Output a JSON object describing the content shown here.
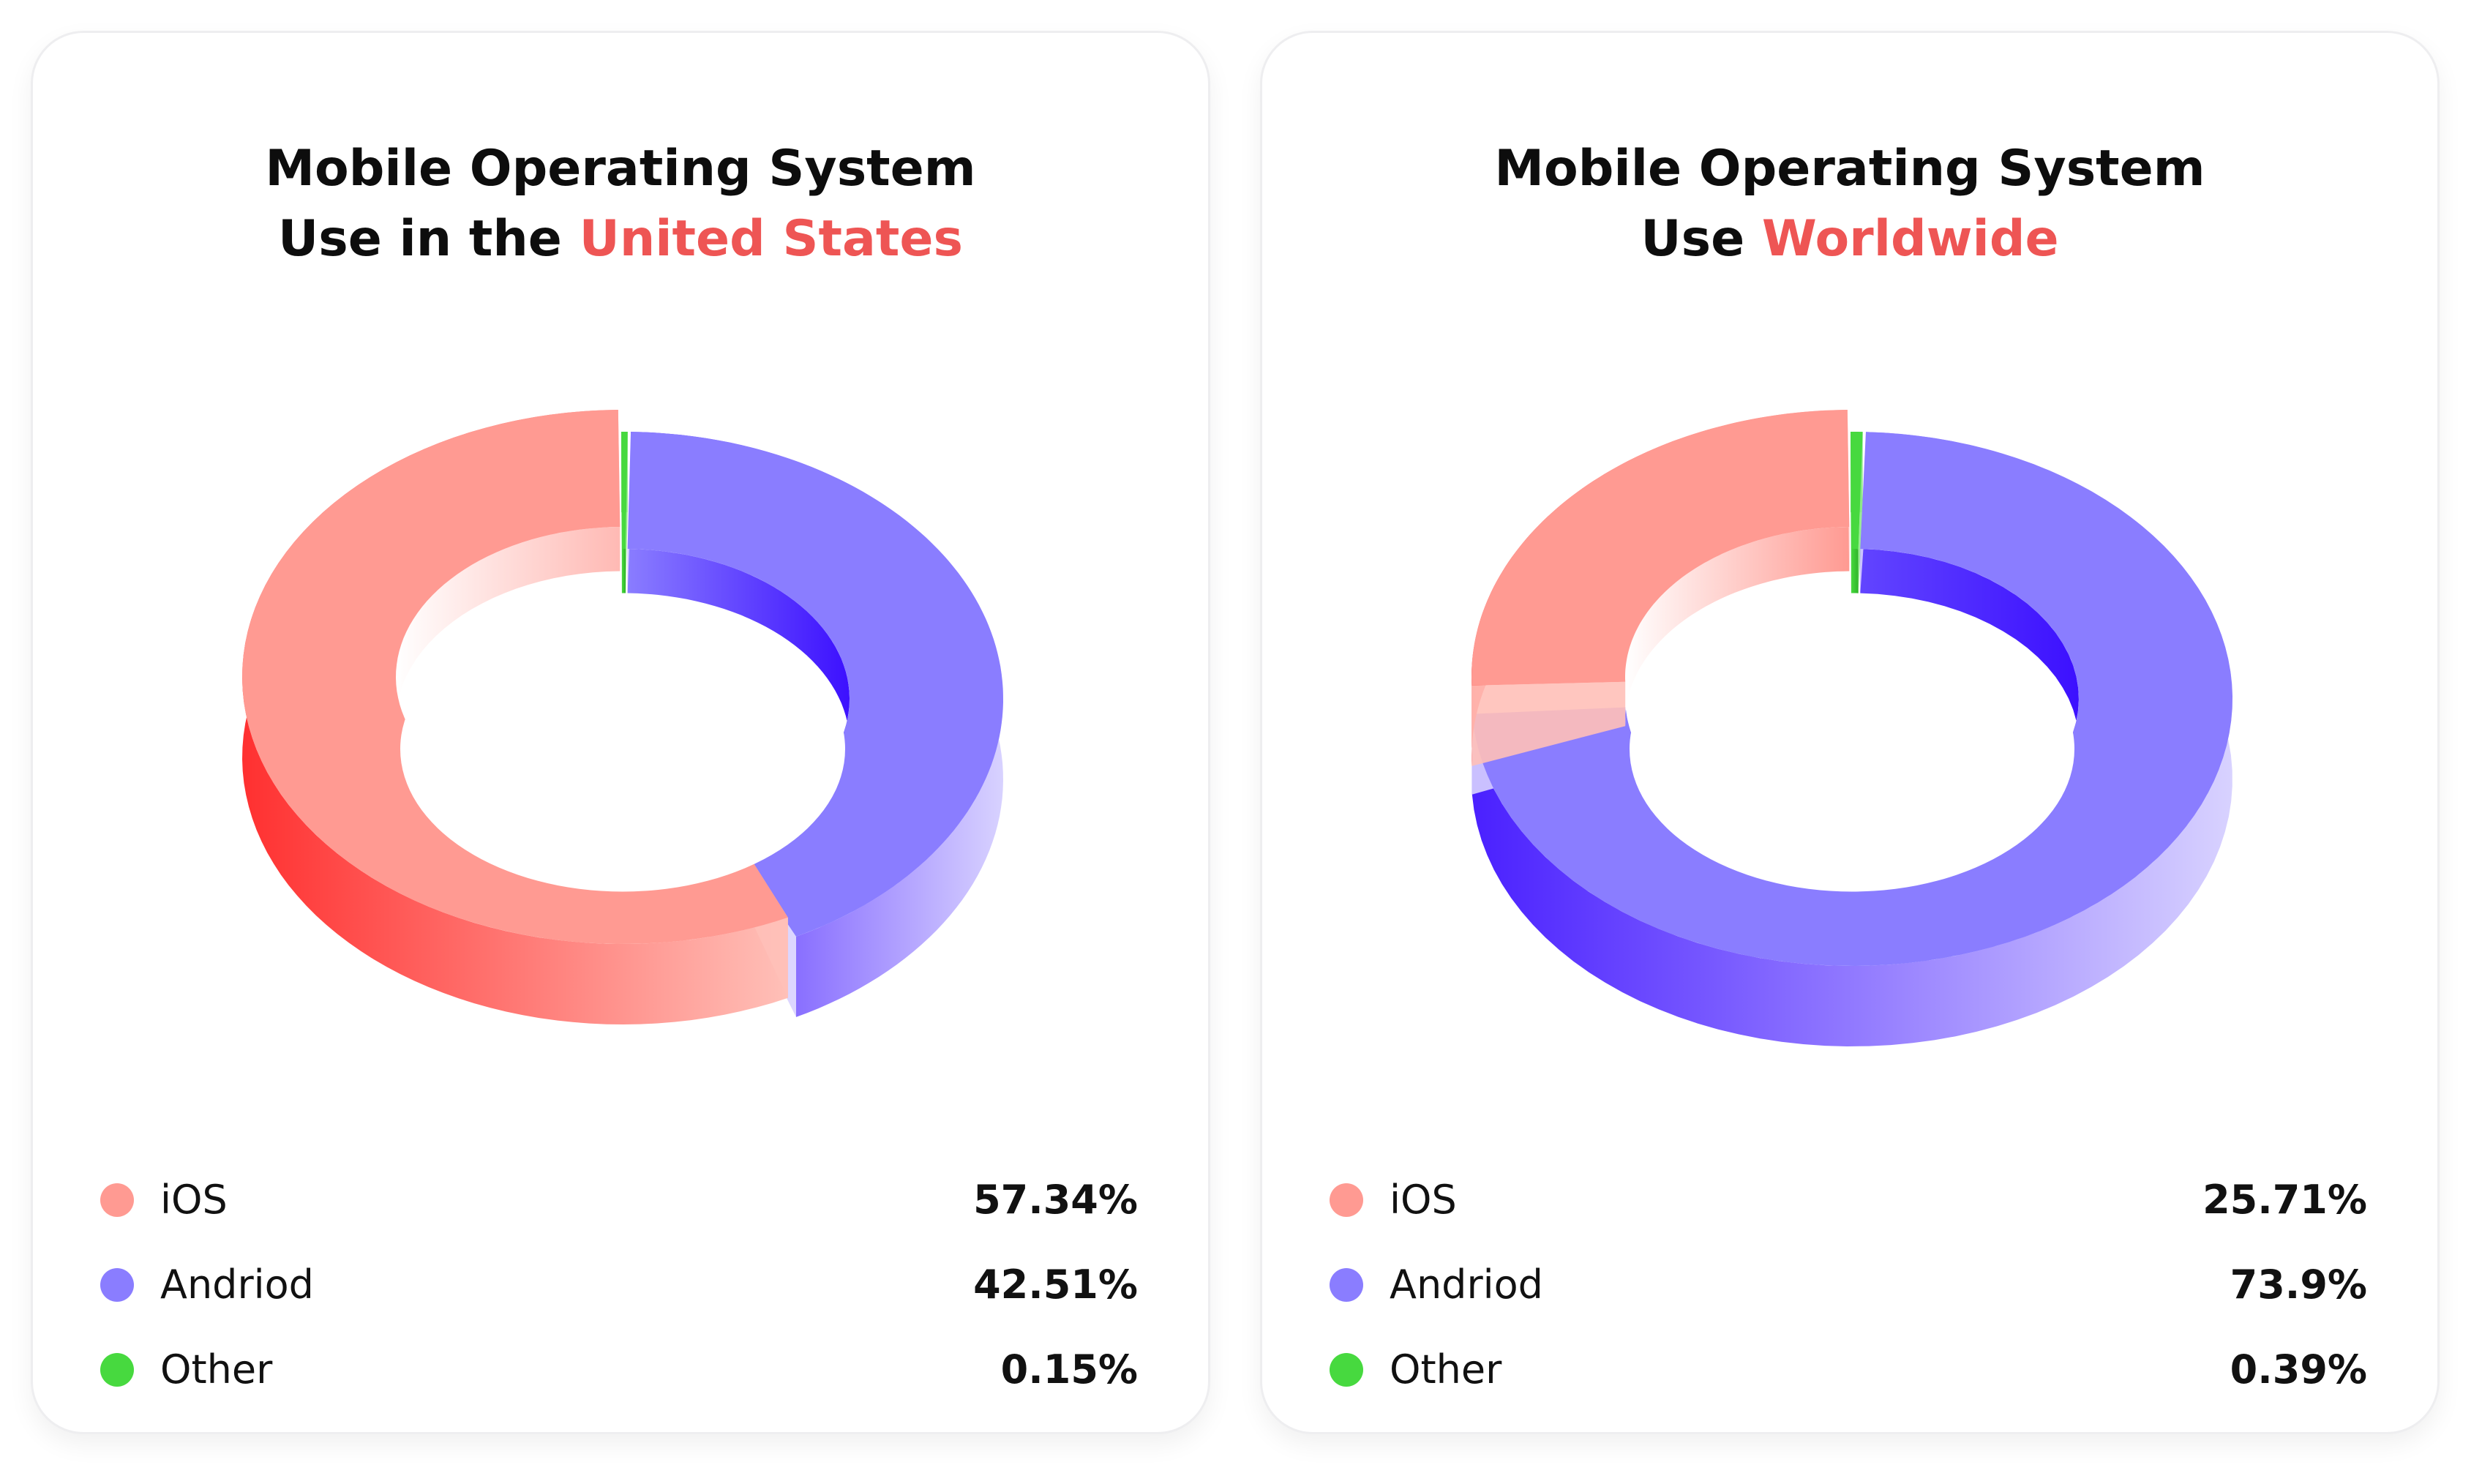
{
  "colors": {
    "ios": "#ff9a92",
    "android": "#8a7dff",
    "other": "#47d93f",
    "accent": "#ee5554"
  },
  "chart_data": [
    {
      "type": "pie",
      "variant": "3d-donut",
      "title": "Mobile Operating System Use in the United States",
      "title_line1": "Mobile Operating System",
      "title_line2_prefix": "Use in the",
      "title_highlight": "United States",
      "categories": [
        "iOS",
        "Andriod",
        "Other"
      ],
      "values": [
        57.34,
        42.51,
        0.15
      ],
      "value_labels": [
        "57.34%",
        "42.51%",
        "0.15%"
      ],
      "legend": "bottom"
    },
    {
      "type": "pie",
      "variant": "3d-donut",
      "title": "Mobile Operating System Use Worldwide",
      "title_line1": "Mobile Operating System",
      "title_line2_prefix": "Use",
      "title_highlight": "Worldwide",
      "categories": [
        "iOS",
        "Andriod",
        "Other"
      ],
      "values": [
        25.71,
        73.9,
        0.39
      ],
      "value_labels": [
        "25.71%",
        "73.9%",
        "0.39%"
      ],
      "legend": "bottom"
    }
  ]
}
